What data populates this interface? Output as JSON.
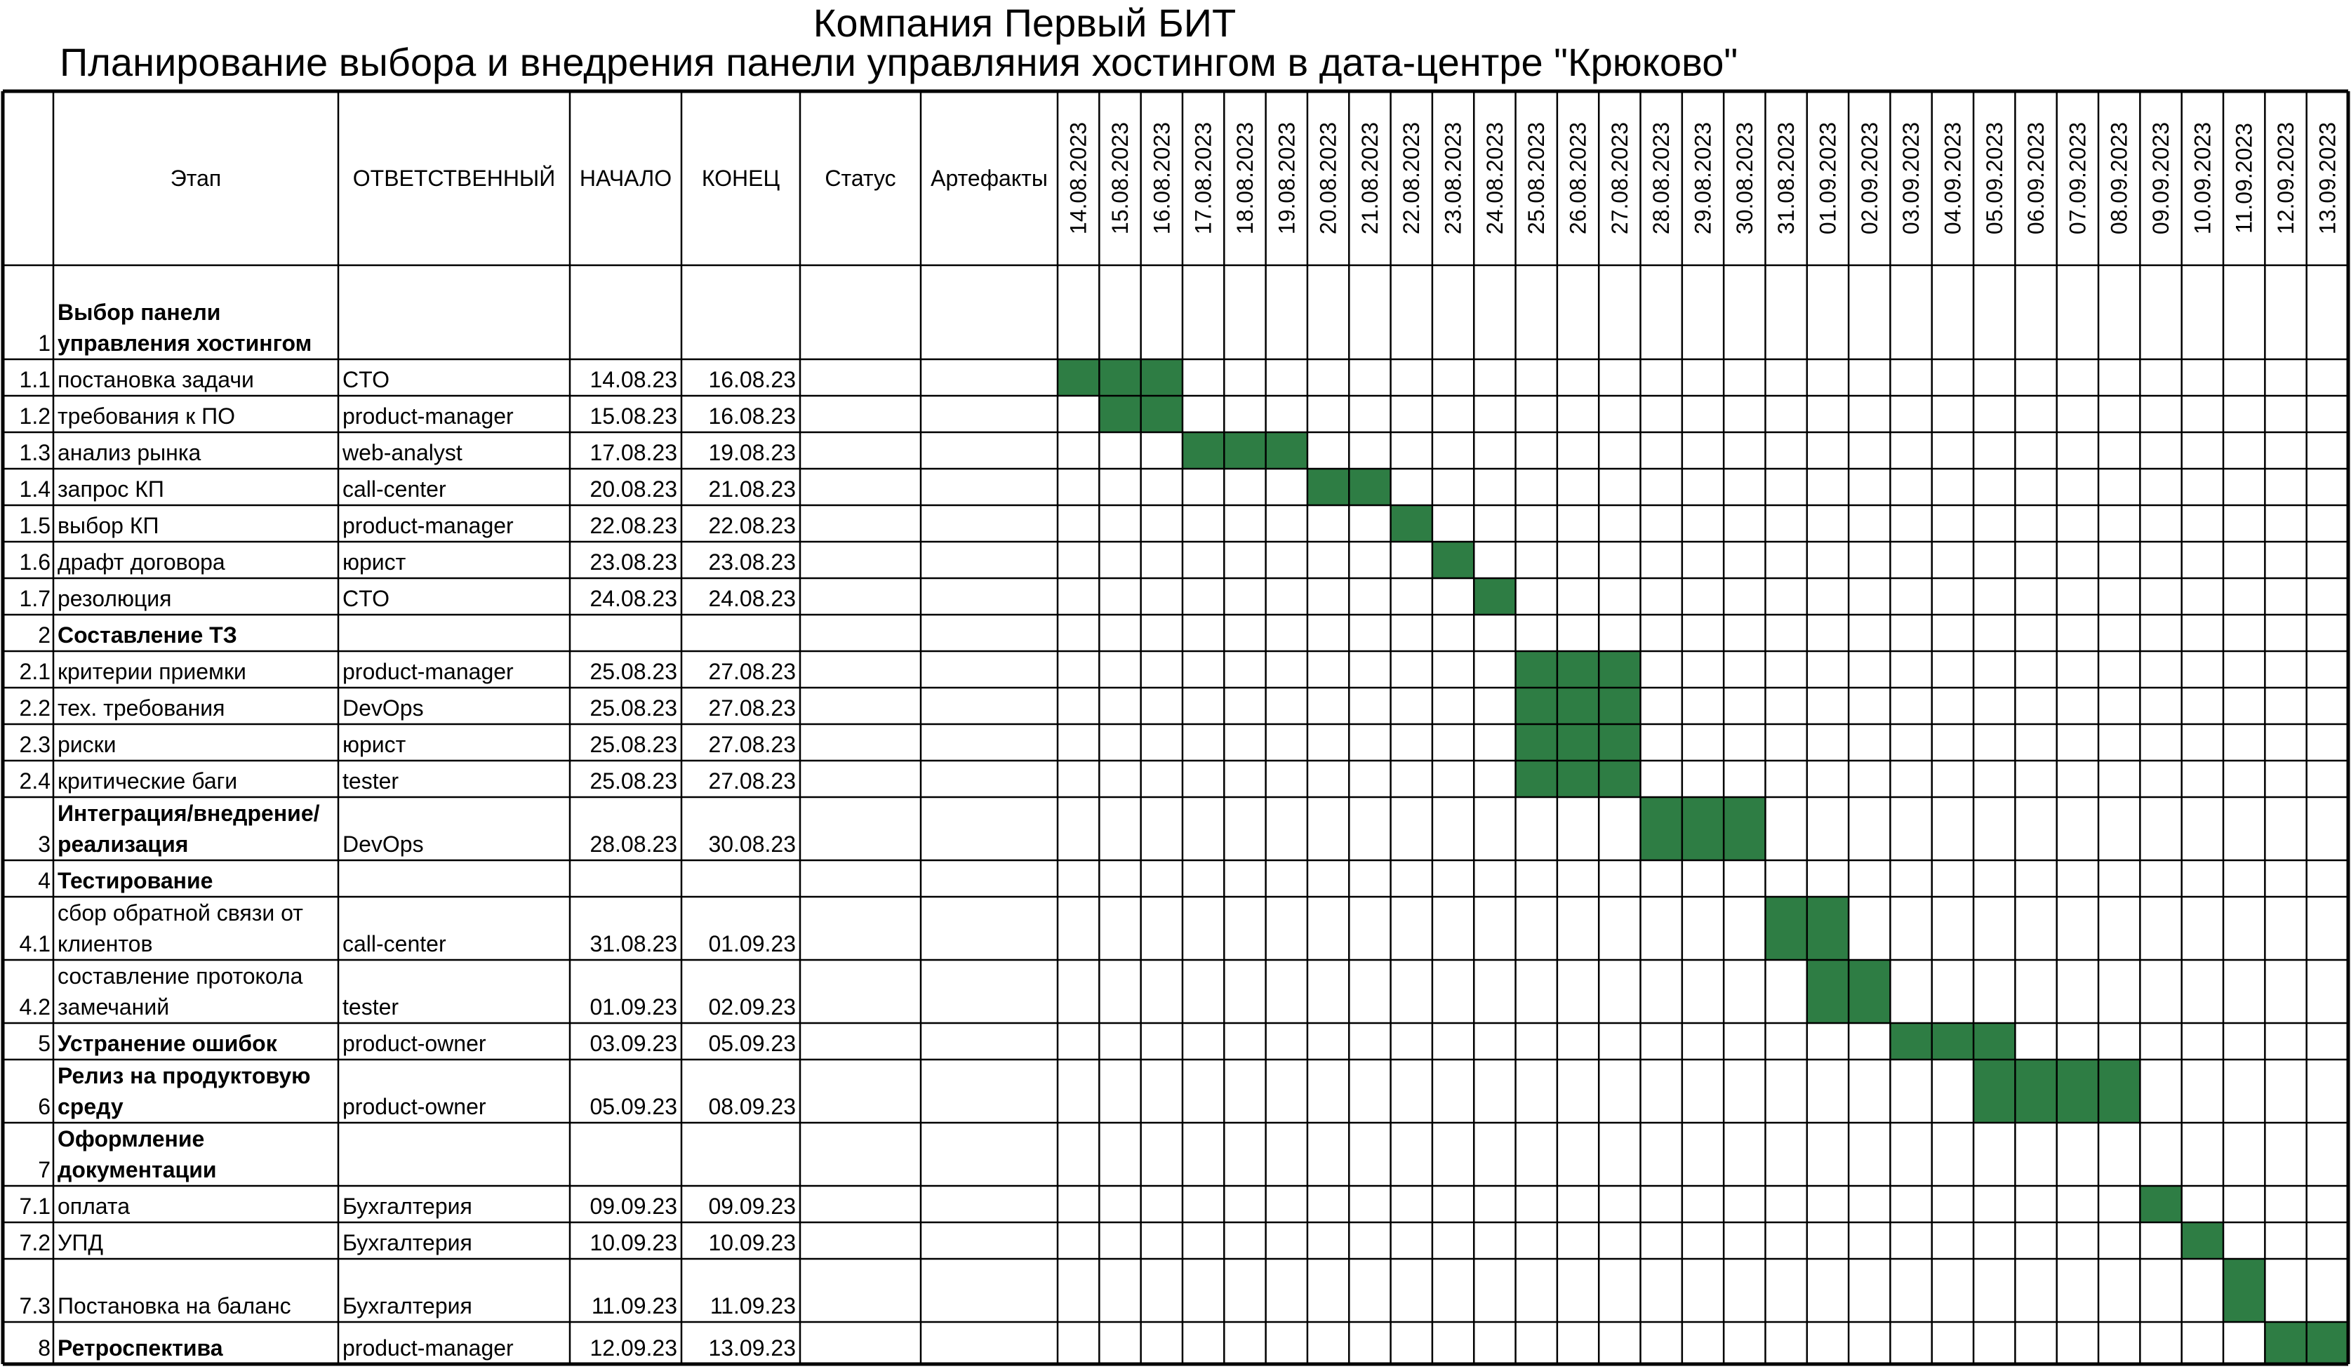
{
  "title": "Компания Первый БИТ",
  "subtitle": "Планирование выбора и внедрения панели управляния хостингом в дата-центре \"Крюково\"",
  "headers": {
    "stage": "Этап",
    "responsible": "ОТВЕТСТВЕННЫЙ",
    "start": "НАЧАЛО",
    "end": "КОНЕЦ",
    "status": "Статус",
    "artifacts": "Артефакты"
  },
  "dates": [
    "14.08.2023",
    "15.08.2023",
    "16.08.2023",
    "17.08.2023",
    "18.08.2023",
    "19.08.2023",
    "20.08.2023",
    "21.08.2023",
    "22.08.2023",
    "23.08.2023",
    "24.08.2023",
    "25.08.2023",
    "26.08.2023",
    "27.08.2023",
    "28.08.2023",
    "29.08.2023",
    "30.08.2023",
    "31.08.2023",
    "01.09.2023",
    "02.09.2023",
    "03.09.2023",
    "04.09.2023",
    "05.09.2023",
    "06.09.2023",
    "07.09.2023",
    "08.09.2023",
    "09.09.2023",
    "10.09.2023",
    "11.09.2023",
    "12.09.2023",
    "13.09.2023"
  ],
  "colors": {
    "bar": "#2e7d44",
    "grid": "#000000",
    "background": "#ffffff"
  },
  "rows": [
    {
      "num": "1",
      "lines": [
        "Выбор панели",
        "управления хостингом"
      ],
      "bold": true,
      "resp": "",
      "start": "",
      "end": "",
      "bar": null
    },
    {
      "num": "1.1",
      "lines": [
        "постановка задачи"
      ],
      "bold": false,
      "resp": "CTO",
      "start": "14.08.23",
      "end": "16.08.23",
      "bar": [
        0,
        2
      ]
    },
    {
      "num": "1.2",
      "lines": [
        "требования к ПО"
      ],
      "bold": false,
      "resp": "product-manager",
      "start": "15.08.23",
      "end": "16.08.23",
      "bar": [
        1,
        2
      ]
    },
    {
      "num": "1.3",
      "lines": [
        "анализ рынка"
      ],
      "bold": false,
      "resp": "web-analyst",
      "start": "17.08.23",
      "end": "19.08.23",
      "bar": [
        3,
        5
      ]
    },
    {
      "num": "1.4",
      "lines": [
        "запрос КП"
      ],
      "bold": false,
      "resp": "call-center",
      "start": "20.08.23",
      "end": "21.08.23",
      "bar": [
        6,
        7
      ]
    },
    {
      "num": "1.5",
      "lines": [
        "выбор КП"
      ],
      "bold": false,
      "resp": "product-manager",
      "start": "22.08.23",
      "end": "22.08.23",
      "bar": [
        8,
        8
      ]
    },
    {
      "num": "1.6",
      "lines": [
        "драфт договора"
      ],
      "bold": false,
      "resp": "юрист",
      "start": "23.08.23",
      "end": "23.08.23",
      "bar": [
        9,
        9
      ]
    },
    {
      "num": "1.7",
      "lines": [
        "резолюция"
      ],
      "bold": false,
      "resp": "CTO",
      "start": "24.08.23",
      "end": "24.08.23",
      "bar": [
        10,
        10
      ]
    },
    {
      "num": "2",
      "lines": [
        "Составление ТЗ"
      ],
      "bold": true,
      "resp": "",
      "start": "",
      "end": "",
      "bar": null
    },
    {
      "num": "2.1",
      "lines": [
        "критерии приемки"
      ],
      "bold": false,
      "resp": "product-manager",
      "start": "25.08.23",
      "end": "27.08.23",
      "bar": [
        11,
        13
      ]
    },
    {
      "num": "2.2",
      "lines": [
        "тех. требования"
      ],
      "bold": false,
      "resp": "DevOps",
      "start": "25.08.23",
      "end": "27.08.23",
      "bar": [
        11,
        13
      ]
    },
    {
      "num": "2.3",
      "lines": [
        "риски"
      ],
      "bold": false,
      "resp": "юрист",
      "start": "25.08.23",
      "end": "27.08.23",
      "bar": [
        11,
        13
      ]
    },
    {
      "num": "2.4",
      "lines": [
        "критические баги"
      ],
      "bold": false,
      "resp": "tester",
      "start": "25.08.23",
      "end": "27.08.23",
      "bar": [
        11,
        13
      ]
    },
    {
      "num": "3",
      "lines": [
        "Интеграция/внедрение/",
        "реализация"
      ],
      "bold": true,
      "resp": "DevOps",
      "start": "28.08.23",
      "end": "30.08.23",
      "bar": [
        14,
        16
      ]
    },
    {
      "num": "4",
      "lines": [
        "Тестирование"
      ],
      "bold": true,
      "resp": "",
      "start": "",
      "end": "",
      "bar": null
    },
    {
      "num": "4.1",
      "lines": [
        "сбор обратной связи от",
        "клиентов"
      ],
      "bold": false,
      "resp": "call-center",
      "start": "31.08.23",
      "end": "01.09.23",
      "bar": [
        17,
        18
      ]
    },
    {
      "num": "4.2",
      "lines": [
        "составление протокола",
        "замечаний"
      ],
      "bold": false,
      "resp": "tester",
      "start": "01.09.23",
      "end": "02.09.23",
      "bar": [
        18,
        19
      ]
    },
    {
      "num": "5",
      "lines": [
        "Устранение ошибок"
      ],
      "bold": true,
      "resp": "product-owner",
      "start": "03.09.23",
      "end": "05.09.23",
      "bar": [
        20,
        22
      ]
    },
    {
      "num": "6",
      "lines": [
        "Релиз на продуктовую",
        "среду"
      ],
      "bold": true,
      "resp": "product-owner",
      "start": "05.09.23",
      "end": "08.09.23",
      "bar": [
        22,
        25
      ]
    },
    {
      "num": "7",
      "lines": [
        "Оформление",
        "документации"
      ],
      "bold": true,
      "resp": "",
      "start": "",
      "end": "",
      "bar": null
    },
    {
      "num": "7.1",
      "lines": [
        "оплата"
      ],
      "bold": false,
      "resp": "Бухгалтерия",
      "start": "09.09.23",
      "end": "09.09.23",
      "bar": [
        26,
        26
      ]
    },
    {
      "num": "7.2",
      "lines": [
        "УПД"
      ],
      "bold": false,
      "resp": "Бухгалтерия",
      "start": "10.09.23",
      "end": "10.09.23",
      "bar": [
        27,
        27
      ]
    },
    {
      "num": "7.3",
      "lines": [
        "",
        "Постановка на баланс"
      ],
      "bold": false,
      "resp": "Бухгалтерия",
      "start": "11.09.23",
      "end": "11.09.23",
      "bar": [
        28,
        28
      ]
    },
    {
      "num": "8",
      "lines": [
        "Ретроспектива"
      ],
      "bold": true,
      "resp": "product-manager",
      "start": "12.09.23",
      "end": "13.09.23",
      "bar": [
        29,
        30
      ]
    }
  ]
}
